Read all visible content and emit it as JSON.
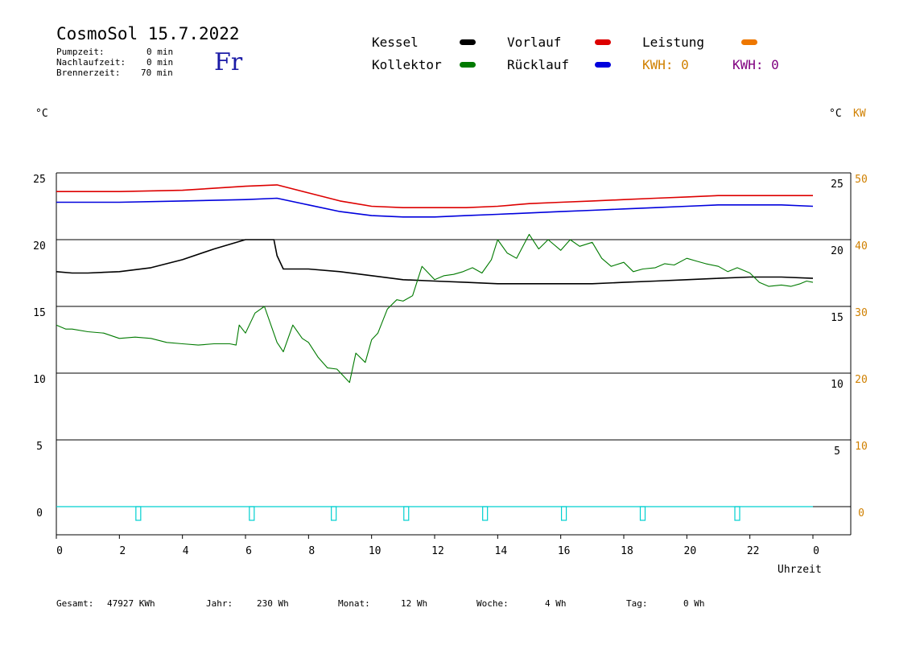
{
  "header": {
    "title": "CosmoSol 15.7.2022",
    "day": "Fr",
    "pump_label": "Pumpzeit:",
    "pump_value": "0 min",
    "overrun_label": "Nachlaufzeit:",
    "overrun_value": "0 min",
    "burner_label": "Brennerzeit:",
    "burner_value": "70 min"
  },
  "legend": {
    "kessel": "Kessel",
    "kollektor": "Kollektor",
    "vorlauf": "Vorlauf",
    "ruecklauf": "Rücklauf",
    "leistung": "Leistung",
    "kwh1": "KWH: 0",
    "kwh2": "KWH: 0"
  },
  "colors": {
    "kessel": "#000000",
    "kollektor": "#007a00",
    "vorlauf": "#dd0000",
    "ruecklauf": "#0000dd",
    "leistung": "#ee7700",
    "kwh2": "#800080",
    "kw_axis": "#d08000",
    "pump": "#00d0d0"
  },
  "axes": {
    "left_unit": "°C",
    "right_unit_c": "°C",
    "right_unit_kw": "KW",
    "xlabel": "Uhrzeit"
  },
  "footer": {
    "gesamt_label": "Gesamt:",
    "gesamt_value": "47927 KWh",
    "jahr_label": "Jahr:",
    "jahr_value": "230 Wh",
    "monat_label": "Monat:",
    "monat_value": "12 Wh",
    "woche_label": "Woche:",
    "woche_value": "4 Wh",
    "tag_label": "Tag:",
    "tag_value": "0 Wh"
  },
  "chart_data": {
    "type": "line",
    "x_range": [
      0,
      24
    ],
    "x_ticks": [
      "0",
      "2",
      "4",
      "6",
      "8",
      "10",
      "12",
      "14",
      "16",
      "18",
      "20",
      "22",
      "0"
    ],
    "ylim": [
      -2,
      25.5
    ],
    "y_ticks_left": [
      "0",
      "5",
      "10",
      "15",
      "20",
      "25"
    ],
    "y_ticks_right_c": [
      "5",
      "10",
      "15",
      "20",
      "25"
    ],
    "y_ticks_right_kw": [
      "0",
      "10",
      "20",
      "30",
      "40",
      "50"
    ],
    "grid": "horizontal",
    "series": [
      {
        "name": "Vorlauf",
        "key": "vorlauf",
        "color": "#dd0000",
        "x": [
          0,
          2,
          4,
          6,
          7,
          8,
          9,
          10,
          11,
          12,
          13,
          14,
          15,
          16,
          17,
          18,
          19,
          20,
          21,
          22,
          23,
          24
        ],
        "y": [
          23.6,
          23.6,
          23.7,
          24.0,
          24.1,
          23.5,
          22.9,
          22.5,
          22.4,
          22.4,
          22.4,
          22.5,
          22.7,
          22.8,
          22.9,
          23.0,
          23.1,
          23.2,
          23.3,
          23.3,
          23.3,
          23.3
        ]
      },
      {
        "name": "Rücklauf",
        "key": "ruecklauf",
        "color": "#0000dd",
        "x": [
          0,
          2,
          4,
          6,
          7,
          8,
          9,
          10,
          11,
          12,
          13,
          14,
          15,
          16,
          17,
          18,
          19,
          20,
          21,
          22,
          23,
          24
        ],
        "y": [
          22.8,
          22.8,
          22.9,
          23.0,
          23.1,
          22.6,
          22.1,
          21.8,
          21.7,
          21.7,
          21.8,
          21.9,
          22.0,
          22.1,
          22.2,
          22.3,
          22.4,
          22.5,
          22.6,
          22.6,
          22.6,
          22.5
        ]
      },
      {
        "name": "Kessel",
        "key": "kessel",
        "color": "#000000",
        "x": [
          0,
          0.5,
          1,
          2,
          3,
          4,
          5,
          6,
          6.9,
          7.0,
          7.2,
          8,
          9,
          10,
          11,
          12,
          13,
          14,
          15,
          16,
          17,
          18,
          19,
          20,
          21,
          22,
          23,
          24
        ],
        "y": [
          17.6,
          17.5,
          17.5,
          17.6,
          17.9,
          18.5,
          19.3,
          20.0,
          20.0,
          18.8,
          17.8,
          17.8,
          17.6,
          17.3,
          17.0,
          16.9,
          16.8,
          16.7,
          16.7,
          16.7,
          16.7,
          16.8,
          16.9,
          17.0,
          17.1,
          17.2,
          17.2,
          17.1
        ]
      },
      {
        "name": "Kollektor",
        "key": "kollektor",
        "color": "#007a00",
        "x": [
          0,
          0.3,
          0.5,
          1,
          1.5,
          2,
          2.5,
          3,
          3.5,
          4,
          4.5,
          5,
          5.5,
          5.7,
          5.8,
          6,
          6.3,
          6.6,
          7,
          7.2,
          7.5,
          7.8,
          8,
          8.3,
          8.6,
          8.9,
          9.1,
          9.3,
          9.5,
          9.8,
          10,
          10.2,
          10.5,
          10.8,
          11,
          11.3,
          11.6,
          11.8,
          12,
          12.3,
          12.6,
          12.9,
          13.2,
          13.5,
          13.8,
          14,
          14.3,
          14.6,
          15,
          15.3,
          15.6,
          16,
          16.3,
          16.6,
          17,
          17.3,
          17.6,
          18,
          18.3,
          18.6,
          19,
          19.3,
          19.6,
          20,
          20.3,
          20.6,
          21,
          21.3,
          21.6,
          22,
          22.3,
          22.6,
          23,
          23.3,
          23.6,
          23.8,
          24
        ],
        "y": [
          13.6,
          13.3,
          13.3,
          13.1,
          13.0,
          12.6,
          12.7,
          12.6,
          12.3,
          12.2,
          12.1,
          12.2,
          12.2,
          12.1,
          13.6,
          13.0,
          14.5,
          15.0,
          12.3,
          11.6,
          13.6,
          12.6,
          12.3,
          11.2,
          10.4,
          10.3,
          9.8,
          9.3,
          11.5,
          10.8,
          12.5,
          13.0,
          14.8,
          15.5,
          15.4,
          15.8,
          18.0,
          17.5,
          17.0,
          17.3,
          17.4,
          17.6,
          17.9,
          17.5,
          18.5,
          20.0,
          19.0,
          18.6,
          20.4,
          19.3,
          20.0,
          19.2,
          20.0,
          19.5,
          19.8,
          18.6,
          18.0,
          18.3,
          17.6,
          17.8,
          17.9,
          18.2,
          18.1,
          18.6,
          18.4,
          18.2,
          18.0,
          17.6,
          17.9,
          17.5,
          16.8,
          16.5,
          16.6,
          16.5,
          16.7,
          16.9,
          16.8
        ]
      }
    ],
    "pump_pulses_x": [
      2.6,
      6.2,
      8.8,
      11.1,
      13.6,
      16.1,
      18.6,
      21.6
    ]
  }
}
